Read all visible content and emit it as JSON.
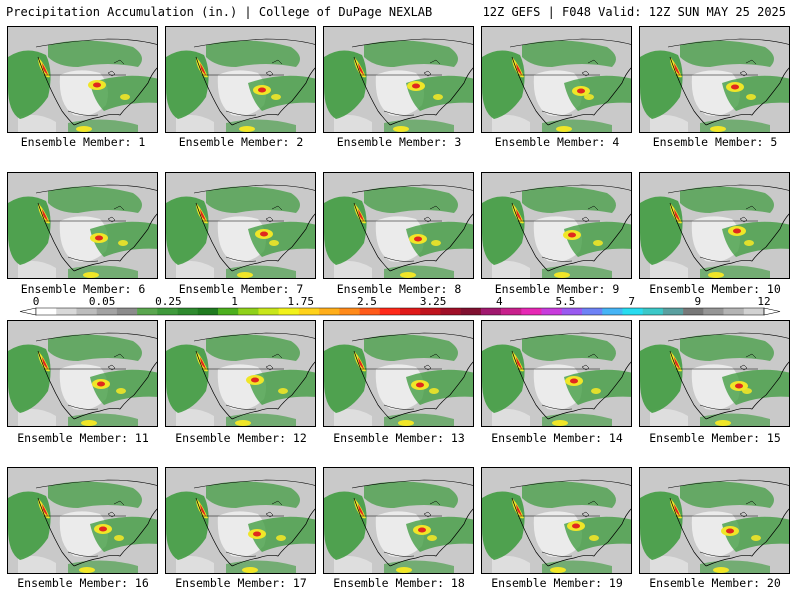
{
  "header": {
    "left": "Precipitation Accumulation (in.) | College of DuPage NEXLAB",
    "right": "12Z GEFS | F048 Valid: 12Z SUN MAY 25 2025"
  },
  "member_caption_prefix": "Ensemble Member: ",
  "members": [
    "1",
    "2",
    "3",
    "4",
    "5",
    "6",
    "7",
    "8",
    "9",
    "10",
    "11",
    "12",
    "13",
    "14",
    "15",
    "16",
    "17",
    "18",
    "19",
    "20"
  ],
  "colorbar": {
    "labels": [
      "0",
      "0.05",
      "0.25",
      "1",
      "1.75",
      "2.5",
      "3.25",
      "4",
      "5.5",
      "7",
      "9",
      "12"
    ],
    "colors": [
      "#ffffff",
      "#d9d9d9",
      "#bdbdbd",
      "#a3a3a3",
      "#8c8c8c",
      "#5aa64f",
      "#3f9a3c",
      "#2e8a2e",
      "#1f7a1f",
      "#4caf1e",
      "#8fd11a",
      "#c8e61a",
      "#f2f21a",
      "#ffd21a",
      "#ffae1a",
      "#ff8a1a",
      "#ff5a1a",
      "#ff2a1a",
      "#e01a1a",
      "#c0141e",
      "#a00f28",
      "#801030",
      "#a0186e",
      "#c8208c",
      "#e628b4",
      "#c83cdc",
      "#9a5af0",
      "#6e82f5",
      "#46b4f5",
      "#28dcf0",
      "#3cc8c8",
      "#5aa0a0",
      "#787878",
      "#969696",
      "#b4b4b4",
      "#d2d2d2"
    ]
  },
  "colors": {
    "land_gray": "#c9c9c9",
    "light": "#ebebeb",
    "green": "#3a9a3a",
    "yellow": "#f0e628",
    "red": "#e0281e"
  }
}
